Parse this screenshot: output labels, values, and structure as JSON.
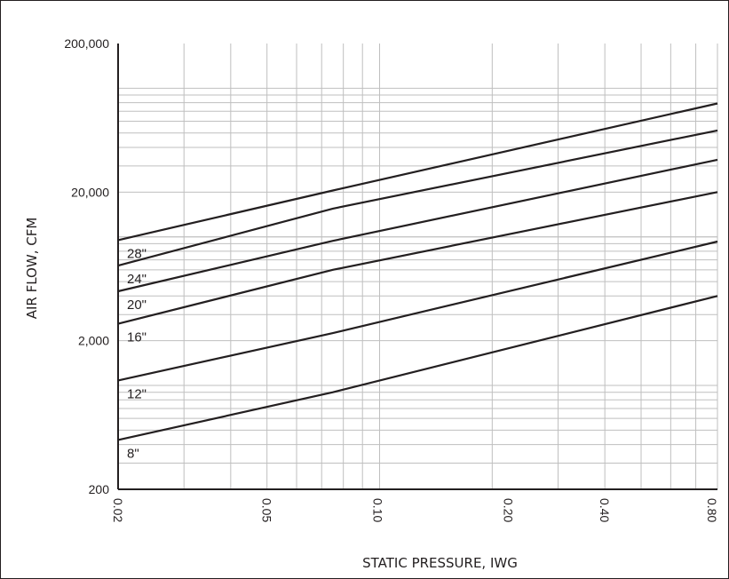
{
  "chart_data": {
    "type": "line",
    "title": "",
    "xlabel": "STATIC PRESSURE, IWG",
    "ylabel": "AIR FLOW, CFM",
    "x_scale": "log",
    "y_scale": "log",
    "xlim": [
      0.02,
      0.8
    ],
    "ylim": [
      200,
      200000
    ],
    "grid": true,
    "x_ticks": [
      {
        "value": 0.02,
        "label": "0.02"
      },
      {
        "value": 0.05,
        "label": "0.05"
      },
      {
        "value": 0.1,
        "label": "0.10"
      },
      {
        "value": 0.2,
        "label": "0.20"
      },
      {
        "value": 0.4,
        "label": "0.40"
      },
      {
        "value": 0.8,
        "label": "0.80"
      }
    ],
    "y_ticks": [
      {
        "value": 200,
        "label": "200"
      },
      {
        "value": 2000,
        "label": "2,000"
      },
      {
        "value": 20000,
        "label": "20,000"
      },
      {
        "value": 200000,
        "label": "200,000"
      }
    ],
    "series": [
      {
        "name": "28\"",
        "x": [
          0.02,
          0.075,
          0.8
        ],
        "y": [
          9500,
          20500,
          79000
        ]
      },
      {
        "name": "24\"",
        "x": [
          0.02,
          0.075,
          0.8
        ],
        "y": [
          6400,
          15500,
          52000
        ]
      },
      {
        "name": "20\"",
        "x": [
          0.02,
          0.075,
          0.8
        ],
        "y": [
          4300,
          9400,
          33000
        ]
      },
      {
        "name": "16\"",
        "x": [
          0.02,
          0.075,
          0.8
        ],
        "y": [
          2600,
          6000,
          20000
        ]
      },
      {
        "name": "12\"",
        "x": [
          0.02,
          0.075,
          0.8
        ],
        "y": [
          1080,
          2250,
          9300
        ]
      },
      {
        "name": "8\"",
        "x": [
          0.02,
          0.075,
          0.8
        ],
        "y": [
          430,
          900,
          4000
        ]
      }
    ]
  }
}
